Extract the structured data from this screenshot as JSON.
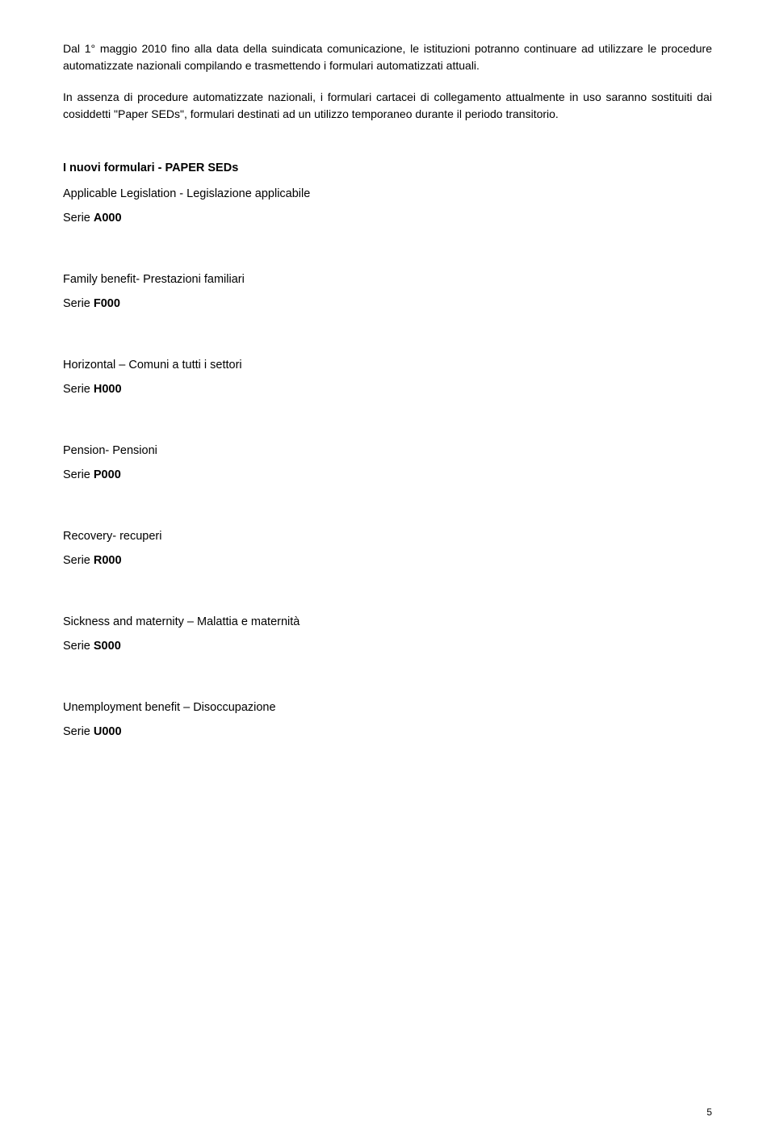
{
  "paragraphs": {
    "p1": "Dal 1° maggio 2010 fino alla data della suindicata comunicazione, le istituzioni potranno continuare ad utilizzare le procedure automatizzate nazionali compilando e trasmettendo i formulari automatizzati attuali.",
    "p2": "In assenza di procedure automatizzate nazionali, i formulari cartacei di collegamento attualmente in uso saranno sostituiti dai cosiddetti \"Paper SEDs\", formulari destinati ad un utilizzo temporaneo durante il periodo transitorio."
  },
  "sectionTitle": "I nuovi formulari  - PAPER SEDs",
  "sections": [
    {
      "label": "Applicable Legislation - Legislazione applicabile",
      "seriePrefix": "Serie ",
      "serieCode": "A000"
    },
    {
      "label": "Family benefit- Prestazioni familiari",
      "seriePrefix": "Serie ",
      "serieCode": "F000"
    },
    {
      "label": "Horizontal – Comuni a tutti i settori",
      "seriePrefix": "Serie ",
      "serieCode": "H000"
    },
    {
      "label": "Pension- Pensioni",
      "seriePrefix": "Serie ",
      "serieCode": "P000"
    },
    {
      "label": "Recovery- recuperi",
      "seriePrefix": "Serie ",
      "serieCode": "R000"
    },
    {
      "label": "Sickness and maternity – Malattia e maternità",
      "seriePrefix": "Serie ",
      "serieCode": "S000"
    },
    {
      "label": "Unemployment benefit – Disoccupazione",
      "seriePrefix": "Serie ",
      "serieCode": "U000"
    }
  ],
  "pageNumber": "5"
}
